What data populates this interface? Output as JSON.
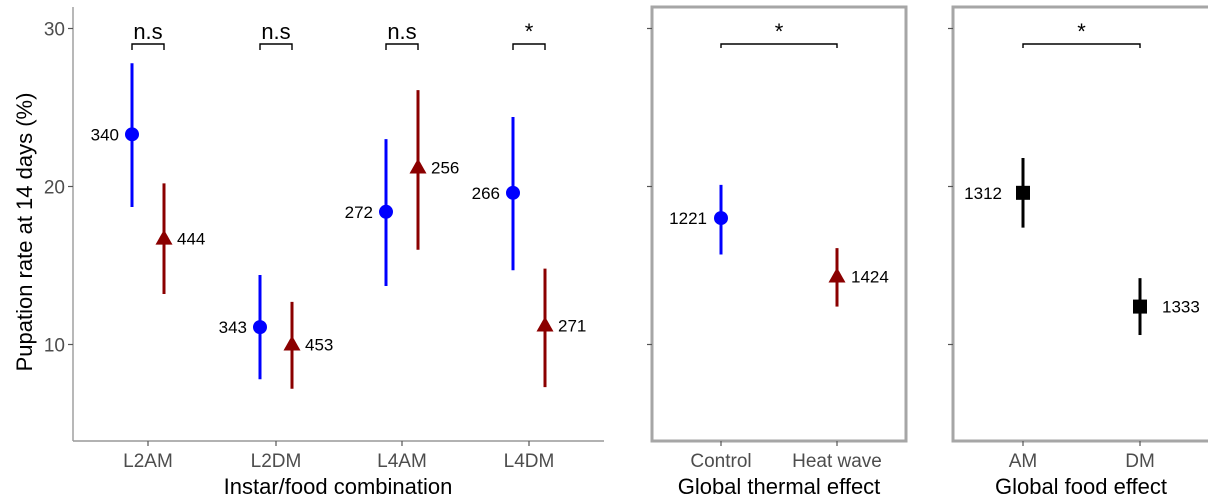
{
  "colors": {
    "control_am": "#0000ff",
    "heatwave": "#8b0000",
    "food": "#000000",
    "panel_border": "#a6a6a6"
  },
  "shared_y": {
    "label": "Pupation rate at 14 days (%)",
    "ticks": [
      10,
      20,
      30
    ]
  },
  "chart_data": [
    {
      "type": "scatter",
      "title": "",
      "xlabel": "Instar/food combination",
      "ylabel": "Pupation rate at 14 days (%)",
      "categories": [
        "L2AM",
        "L2DM",
        "L4AM",
        "L4DM"
      ],
      "ylim": [
        4,
        31
      ],
      "grid": false,
      "series": [
        {
          "color": "#0000ff",
          "marker": "circle",
          "values": [
            23.3,
            11.1,
            18.4,
            19.6
          ],
          "ci_low": [
            18.7,
            7.8,
            13.7,
            14.7
          ],
          "ci_high": [
            27.8,
            14.4,
            23.0,
            24.4
          ],
          "labels": [
            "340",
            "343",
            "272",
            "266"
          ]
        },
        {
          "color": "#8b0000",
          "marker": "triangle",
          "values": [
            16.7,
            10.0,
            21.2,
            11.2
          ],
          "ci_low": [
            13.2,
            7.2,
            16.0,
            7.3
          ],
          "ci_high": [
            20.2,
            12.7,
            26.1,
            14.8
          ],
          "labels": [
            "444",
            "453",
            "256",
            "271"
          ]
        }
      ],
      "annotations": [
        "n.s",
        "n.s",
        "n.s",
        "*"
      ]
    },
    {
      "type": "scatter",
      "title": "",
      "xlabel": "Global thermal effect",
      "categories": [
        "Control",
        "Heat wave"
      ],
      "ylim": [
        4,
        31
      ],
      "grid": false,
      "points": [
        {
          "category": "Control",
          "value": 18.0,
          "ci_low": 15.7,
          "ci_high": 20.1,
          "label": "1221",
          "color": "#0000ff",
          "marker": "circle"
        },
        {
          "category": "Heat wave",
          "value": 14.3,
          "ci_low": 12.4,
          "ci_high": 16.1,
          "label": "1424",
          "color": "#8b0000",
          "marker": "triangle"
        }
      ],
      "annotations": [
        "*"
      ]
    },
    {
      "type": "scatter",
      "title": "",
      "xlabel": "Global food effect",
      "categories": [
        "AM",
        "DM"
      ],
      "ylim": [
        4,
        31
      ],
      "grid": false,
      "points": [
        {
          "category": "AM",
          "value": 19.6,
          "ci_low": 17.4,
          "ci_high": 21.8,
          "label": "1312",
          "color": "#000000",
          "marker": "square"
        },
        {
          "category": "DM",
          "value": 12.4,
          "ci_low": 10.6,
          "ci_high": 14.2,
          "label": "1333",
          "color": "#000000",
          "marker": "square"
        }
      ],
      "annotations": [
        "*"
      ]
    }
  ]
}
